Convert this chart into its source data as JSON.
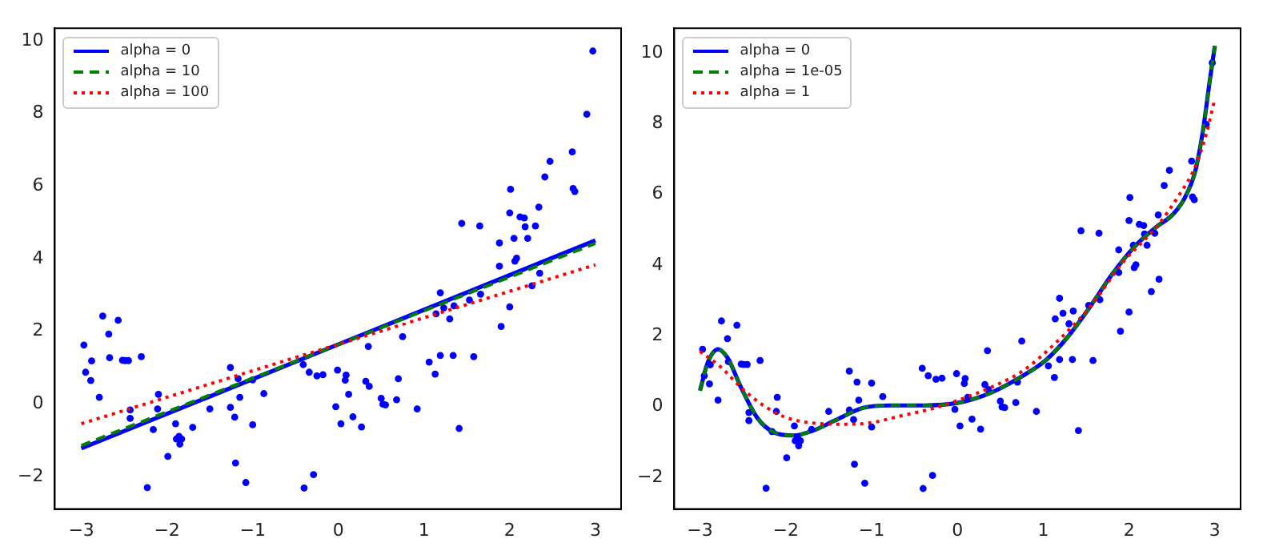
{
  "chart_data": [
    {
      "type": "line",
      "xlim": [
        -3.31,
        3.3
      ],
      "ylim": [
        -2.9,
        10.35
      ],
      "xticks": [
        -3,
        -2,
        -1,
        0,
        1,
        2,
        3
      ],
      "yticks": [
        -2,
        0,
        2,
        4,
        6,
        8,
        10
      ],
      "grid": false,
      "legend": "top left",
      "series": [
        {
          "type": "scatter",
          "color": "#0000ff",
          "marker": "circle",
          "x": [
            -2.97,
            -2.95,
            -2.89,
            -2.88,
            -2.79,
            -2.75,
            -2.68,
            -2.67,
            -2.57,
            -2.52,
            -2.49,
            -2.45,
            -2.43,
            -2.43,
            -2.3,
            -2.23,
            -2.16,
            -2.11,
            -2.1,
            -1.99,
            -1.9,
            -1.89,
            -1.86,
            -1.85,
            -1.83,
            -1.7,
            -1.5,
            -1.26,
            -1.26,
            -1.21,
            -1.2,
            -1.17,
            -1.15,
            -1.08,
            -1.0,
            -1.0,
            -0.87,
            -0.41,
            -0.4,
            -0.34,
            -0.29,
            -0.25,
            -0.18,
            -0.03,
            -0.01,
            0.03,
            0.08,
            0.09,
            0.12,
            0.17,
            0.35,
            0.27,
            0.32,
            0.36,
            0.5,
            0.52,
            0.55,
            0.68,
            0.7,
            0.75,
            0.92,
            1.06,
            1.13,
            1.14,
            1.19,
            1.19,
            1.23,
            1.3,
            1.34,
            1.35,
            1.41,
            1.44,
            1.53,
            1.58,
            1.65,
            1.66,
            1.88,
            1.88,
            1.9,
            2.0,
            2.0,
            2.01,
            2.05,
            2.06,
            2.08,
            2.12,
            2.17,
            2.18,
            2.21,
            2.26,
            2.3,
            2.34,
            2.35,
            2.41,
            2.47,
            2.73,
            2.74,
            2.76,
            2.9,
            2.97
          ],
          "values": [
            1.62,
            0.87,
            0.64,
            1.18,
            0.18,
            2.42,
            1.92,
            1.27,
            2.3,
            1.2,
            1.19,
            1.19,
            -0.17,
            -0.4,
            1.3,
            -2.31,
            -0.71,
            -0.14,
            0.26,
            -1.45,
            -0.55,
            -0.97,
            -0.9,
            -1.11,
            -0.97,
            -0.65,
            -0.14,
            1.0,
            -0.1,
            -0.37,
            -1.63,
            0.69,
            0.18,
            -2.17,
            0.66,
            -0.58,
            0.28,
            1.08,
            -2.32,
            0.87,
            -1.95,
            0.77,
            0.8,
            -0.08,
            0.93,
            -0.55,
            0.65,
            0.79,
            0.26,
            -0.36,
            1.58,
            -0.64,
            0.62,
            0.48,
            0.15,
            -0.01,
            -0.03,
            0.11,
            0.69,
            1.85,
            -0.14,
            1.15,
            0.82,
            2.48,
            3.06,
            1.33,
            2.64,
            2.34,
            1.33,
            2.7,
            -0.68,
            4.97,
            2.86,
            1.3,
            4.9,
            3.02,
            4.43,
            3.79,
            2.13,
            2.67,
            5.26,
            5.91,
            4.56,
            3.93,
            4.01,
            5.15,
            5.12,
            4.88,
            4.56,
            3.25,
            4.9,
            5.42,
            3.6,
            6.25,
            6.68,
            6.94,
            5.93,
            5.85,
            7.98,
            9.72
          ]
        },
        {
          "name": "alpha = 0",
          "color": "#0000ff",
          "line_style": "solid",
          "marker": "none",
          "x": [
            -3,
            3
          ],
          "values": [
            -1.23,
            4.5
          ]
        },
        {
          "name": "alpha = 10",
          "color": "#008000",
          "line_style": "dashed",
          "marker": "none",
          "x": [
            -3,
            3
          ],
          "values": [
            -1.15,
            4.42
          ]
        },
        {
          "name": "alpha = 100",
          "color": "#ff0000",
          "line_style": "dotted",
          "marker": "none",
          "x": [
            -3,
            3
          ],
          "values": [
            -0.55,
            3.83
          ]
        }
      ]
    },
    {
      "type": "line",
      "xlim": [
        -3.3,
        3.3
      ],
      "ylim": [
        -2.9,
        10.7
      ],
      "xticks": [
        -3,
        -2,
        -1,
        0,
        1,
        2,
        3
      ],
      "yticks": [
        -2,
        0,
        2,
        4,
        6,
        8,
        10
      ],
      "grid": false,
      "legend": "top left",
      "series": [
        {
          "type": "scatter",
          "color": "#0000ff",
          "marker": "circle",
          "x": [
            -2.97,
            -2.95,
            -2.89,
            -2.88,
            -2.79,
            -2.75,
            -2.68,
            -2.67,
            -2.57,
            -2.52,
            -2.49,
            -2.45,
            -2.43,
            -2.43,
            -2.3,
            -2.23,
            -2.16,
            -2.11,
            -2.1,
            -1.99,
            -1.9,
            -1.89,
            -1.86,
            -1.85,
            -1.83,
            -1.7,
            -1.5,
            -1.26,
            -1.26,
            -1.21,
            -1.2,
            -1.17,
            -1.15,
            -1.08,
            -1.0,
            -1.0,
            -0.87,
            -0.41,
            -0.4,
            -0.34,
            -0.29,
            -0.25,
            -0.18,
            -0.03,
            -0.01,
            0.03,
            0.08,
            0.09,
            0.12,
            0.17,
            0.35,
            0.27,
            0.32,
            0.36,
            0.5,
            0.52,
            0.55,
            0.68,
            0.7,
            0.75,
            0.92,
            1.06,
            1.13,
            1.14,
            1.19,
            1.19,
            1.23,
            1.3,
            1.34,
            1.35,
            1.41,
            1.44,
            1.53,
            1.58,
            1.65,
            1.66,
            1.88,
            1.88,
            1.9,
            2.0,
            2.0,
            2.01,
            2.05,
            2.06,
            2.08,
            2.12,
            2.17,
            2.18,
            2.21,
            2.26,
            2.3,
            2.34,
            2.35,
            2.41,
            2.47,
            2.73,
            2.74,
            2.76,
            2.9,
            2.97
          ],
          "values": [
            1.62,
            0.87,
            0.64,
            1.18,
            0.18,
            2.42,
            1.92,
            1.27,
            2.3,
            1.2,
            1.19,
            1.19,
            -0.17,
            -0.4,
            1.3,
            -2.31,
            -0.71,
            -0.14,
            0.26,
            -1.45,
            -0.55,
            -0.97,
            -0.9,
            -1.11,
            -0.97,
            -0.65,
            -0.14,
            1.0,
            -0.1,
            -0.37,
            -1.63,
            0.69,
            0.18,
            -2.17,
            0.66,
            -0.58,
            0.28,
            1.08,
            -2.32,
            0.87,
            -1.95,
            0.77,
            0.8,
            -0.08,
            0.93,
            -0.55,
            0.65,
            0.79,
            0.26,
            -0.36,
            1.58,
            -0.64,
            0.62,
            0.48,
            0.15,
            -0.01,
            -0.03,
            0.11,
            0.69,
            1.85,
            -0.14,
            1.15,
            0.82,
            2.48,
            3.06,
            1.33,
            2.64,
            2.34,
            1.33,
            2.7,
            -0.68,
            4.97,
            2.86,
            1.3,
            4.9,
            3.02,
            4.43,
            3.79,
            2.13,
            2.67,
            5.26,
            5.91,
            4.56,
            3.93,
            4.01,
            5.15,
            5.12,
            4.88,
            4.56,
            3.25,
            4.9,
            5.42,
            3.6,
            6.25,
            6.68,
            6.94,
            5.93,
            5.85,
            7.98,
            9.72
          ]
        },
        {
          "name": "alpha = 0",
          "color": "#0000ff",
          "line_style": "solid",
          "marker": "none",
          "x": [
            -3,
            -2.91,
            -2.79,
            -2.68,
            -2.52,
            -2.33,
            -2.14,
            -1.91,
            -1.68,
            -1.43,
            -1.1,
            -0.78,
            -0.39,
            0,
            0.38,
            0.77,
            1.03,
            1.28,
            1.54,
            1.8,
            2.06,
            2.32,
            2.51,
            2.64,
            2.77,
            2.86,
            2.94,
            3
          ],
          "values": [
            0.45,
            1.24,
            1.62,
            1.38,
            0.53,
            -0.33,
            -0.73,
            -0.82,
            -0.68,
            -0.4,
            -0.04,
            0.03,
            0.03,
            0.1,
            0.38,
            0.88,
            1.31,
            1.95,
            2.8,
            3.73,
            4.51,
            5.08,
            5.43,
            5.86,
            6.64,
            7.78,
            9.2,
            10.2
          ]
        },
        {
          "name": "alpha = 1e-05",
          "color": "#008000",
          "line_style": "dashed",
          "marker": "none",
          "x": [
            -3,
            -2.91,
            -2.79,
            -2.68,
            -2.52,
            -2.33,
            -2.14,
            -1.91,
            -1.68,
            -1.43,
            -1.1,
            -0.78,
            -0.39,
            0,
            0.38,
            0.77,
            1.03,
            1.28,
            1.54,
            1.8,
            2.06,
            2.32,
            2.51,
            2.64,
            2.77,
            2.86,
            2.94,
            3
          ],
          "values": [
            0.45,
            1.24,
            1.62,
            1.38,
            0.53,
            -0.33,
            -0.73,
            -0.82,
            -0.68,
            -0.4,
            -0.04,
            0.03,
            0.03,
            0.1,
            0.38,
            0.88,
            1.31,
            1.95,
            2.8,
            3.73,
            4.51,
            5.08,
            5.43,
            5.86,
            6.64,
            7.78,
            9.2,
            10.2
          ]
        },
        {
          "name": "alpha = 1",
          "color": "#ff0000",
          "line_style": "dotted",
          "marker": "none",
          "x": [
            -3,
            -2.75,
            -2.52,
            -2.26,
            -2.01,
            -1.68,
            -1.36,
            -1.04,
            -0.65,
            -0.26,
            0,
            0.38,
            0.77,
            1.15,
            1.54,
            1.93,
            2.32,
            2.57,
            2.77,
            2.9,
            3
          ],
          "values": [
            1.56,
            1.1,
            0.53,
            0.03,
            -0.3,
            -0.47,
            -0.5,
            -0.47,
            -0.26,
            -0.04,
            0.17,
            0.53,
            1.02,
            1.81,
            2.8,
            4.08,
            5.08,
            5.93,
            6.78,
            7.71,
            8.7
          ]
        }
      ]
    }
  ]
}
